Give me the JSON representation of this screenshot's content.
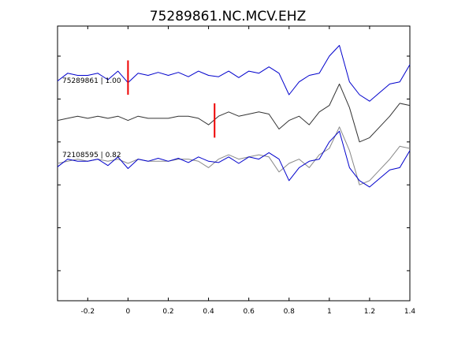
{
  "chart_data": {
    "type": "line",
    "title": "75289861.NC.MCV.EHZ",
    "xlabel": "",
    "ylabel": "",
    "xlim": [
      -0.35,
      1.4
    ],
    "ylim": [
      -3.2,
      3.2
    ],
    "x_ticks": [
      -0.2,
      0,
      0.2,
      0.4,
      0.6,
      0.8,
      1,
      1.2,
      1.4
    ],
    "x_tick_labels": [
      "-0.2",
      "0",
      "0.2",
      "0.4",
      "0.6",
      "0.8",
      "1",
      "1.2",
      "1.4"
    ],
    "y_ticks": [
      -2.5,
      -1.5,
      -0.5,
      0.5,
      1.5,
      2.5
    ],
    "grid": false,
    "colors": {
      "primary": "#0000cc",
      "secondary": "#333333",
      "overlay_secondary": "#888888",
      "pick": "#ee0000"
    },
    "annotations": [
      {
        "text": "75289861 | 1.00",
        "x": -0.35,
        "y": 0.3
      },
      {
        "text": "72108595 | 0.82",
        "x": -0.35,
        "y": 1.2
      }
    ],
    "picks": [
      {
        "trace": 0,
        "x": 0.0
      },
      {
        "trace": 1,
        "x": 0.43
      }
    ],
    "series": [
      {
        "trace": 0,
        "offset": 2.0,
        "color": "#0000cc",
        "x": [
          -0.35,
          -0.3,
          -0.25,
          -0.2,
          -0.15,
          -0.1,
          -0.05,
          0,
          0.05,
          0.1,
          0.15,
          0.2,
          0.25,
          0.3,
          0.35,
          0.4,
          0.45,
          0.5,
          0.55,
          0.6,
          0.65,
          0.7,
          0.75,
          0.8,
          0.85,
          0.9,
          0.95,
          1,
          1.05,
          1.1,
          1.15,
          1.2,
          1.25,
          1.3,
          1.35,
          1.4
        ],
        "y": [
          -0.08,
          0.1,
          0.05,
          0.05,
          0.1,
          -0.05,
          0.15,
          -0.12,
          0.1,
          0.05,
          0.12,
          0.05,
          0.12,
          0.02,
          0.15,
          0.05,
          0.02,
          0.15,
          0.0,
          0.15,
          0.1,
          0.25,
          0.1,
          -0.4,
          -0.1,
          0.05,
          0.1,
          0.5,
          0.75,
          -0.1,
          -0.4,
          -0.55,
          -0.35,
          -0.15,
          -0.1,
          0.3
        ]
      },
      {
        "trace": 1,
        "offset": 1.0,
        "color": "#333333",
        "x": [
          -0.35,
          -0.3,
          -0.25,
          -0.2,
          -0.15,
          -0.1,
          -0.05,
          0,
          0.05,
          0.1,
          0.15,
          0.2,
          0.25,
          0.3,
          0.35,
          0.4,
          0.45,
          0.5,
          0.55,
          0.6,
          0.65,
          0.7,
          0.75,
          0.8,
          0.85,
          0.9,
          0.95,
          1,
          1.05,
          1.1,
          1.15,
          1.2,
          1.25,
          1.3,
          1.35,
          1.4
        ],
        "y": [
          0.0,
          0.05,
          0.1,
          0.05,
          0.1,
          0.05,
          0.1,
          0.0,
          0.1,
          0.05,
          0.05,
          0.05,
          0.1,
          0.1,
          0.05,
          -0.1,
          0.1,
          0.2,
          0.1,
          0.15,
          0.2,
          0.15,
          -0.2,
          0.0,
          0.1,
          -0.1,
          0.2,
          0.35,
          0.85,
          0.3,
          -0.5,
          -0.4,
          -0.15,
          0.1,
          0.4,
          0.35
        ]
      },
      {
        "trace": 2,
        "offset": 0.0,
        "color": "#888888",
        "x": [
          -0.35,
          -0.3,
          -0.25,
          -0.2,
          -0.15,
          -0.1,
          -0.05,
          0,
          0.05,
          0.1,
          0.15,
          0.2,
          0.25,
          0.3,
          0.35,
          0.4,
          0.45,
          0.5,
          0.55,
          0.6,
          0.65,
          0.7,
          0.75,
          0.8,
          0.85,
          0.9,
          0.95,
          1,
          1.05,
          1.1,
          1.15,
          1.2,
          1.25,
          1.3,
          1.35,
          1.4
        ],
        "y": [
          0.0,
          0.05,
          0.1,
          0.05,
          0.1,
          0.05,
          0.1,
          0.0,
          0.1,
          0.05,
          0.05,
          0.05,
          0.1,
          0.1,
          0.05,
          -0.1,
          0.1,
          0.2,
          0.1,
          0.15,
          0.2,
          0.15,
          -0.2,
          0.0,
          0.1,
          -0.1,
          0.2,
          0.35,
          0.85,
          0.3,
          -0.5,
          -0.4,
          -0.15,
          0.1,
          0.4,
          0.35
        ]
      },
      {
        "trace": 2,
        "offset": 0.0,
        "color": "#0000cc",
        "x": [
          -0.35,
          -0.3,
          -0.25,
          -0.2,
          -0.15,
          -0.1,
          -0.05,
          0,
          0.05,
          0.1,
          0.15,
          0.2,
          0.25,
          0.3,
          0.35,
          0.4,
          0.45,
          0.5,
          0.55,
          0.6,
          0.65,
          0.7,
          0.75,
          0.8,
          0.85,
          0.9,
          0.95,
          1,
          1.05,
          1.1,
          1.15,
          1.2,
          1.25,
          1.3,
          1.35,
          1.4
        ],
        "y": [
          -0.08,
          0.1,
          0.05,
          0.05,
          0.1,
          -0.05,
          0.15,
          -0.12,
          0.1,
          0.05,
          0.12,
          0.05,
          0.12,
          0.02,
          0.15,
          0.05,
          0.02,
          0.15,
          0.0,
          0.15,
          0.1,
          0.25,
          0.1,
          -0.4,
          -0.1,
          0.05,
          0.1,
          0.5,
          0.75,
          -0.1,
          -0.4,
          -0.55,
          -0.35,
          -0.15,
          -0.1,
          0.3
        ]
      }
    ]
  }
}
